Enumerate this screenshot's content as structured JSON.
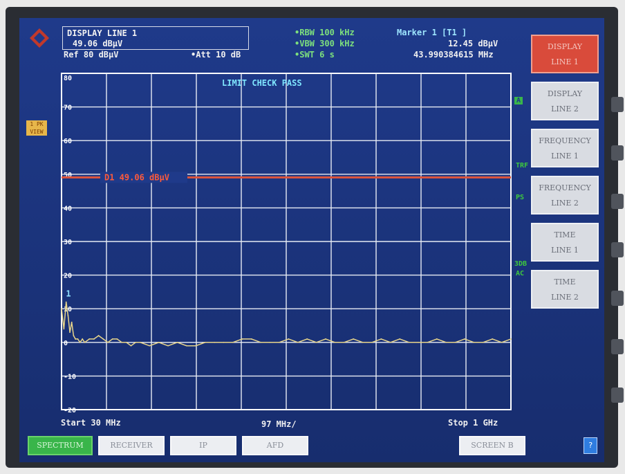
{
  "header": {
    "display_title": "DISPLAY LINE 1",
    "display_value": "49.06 dBµV",
    "ref": "Ref  80 dBµV",
    "att": "•Att  10 dB",
    "rbw": "•RBW 100 kHz",
    "vbw": "•VBW 300 kHz",
    "swt": "•SWT 6 s",
    "marker_title": "Marker 1 [T1 ]",
    "marker_level": "12.45 dBµV",
    "marker_freq": "43.990384615 MHz"
  },
  "plot": {
    "limit_check": "LIMIT CHECK   PASS",
    "display_line_label": "D1 49.06 dBµV",
    "marker_number": "1",
    "y_ticks": [
      "80",
      "70",
      "60",
      "50",
      "40",
      "30",
      "20",
      "10",
      "0",
      "-10",
      "-20"
    ],
    "start": "Start  30 MHz",
    "span_per_div": "97 MHz/",
    "stop": "Stop  1 GHz"
  },
  "side_marks": {
    "a": "A",
    "trf": "TRF",
    "ps": "PS",
    "db": "3DB",
    "ac": "AC",
    "left_tag": "1 PK VIEW"
  },
  "softkeys": [
    {
      "line1": "DISPLAY",
      "line2": "LINE 1",
      "active": true
    },
    {
      "line1": "DISPLAY",
      "line2": "LINE 2",
      "active": false
    },
    {
      "line1": "FREQUENCY",
      "line2": "LINE 1",
      "active": false
    },
    {
      "line1": "FREQUENCY",
      "line2": "LINE 2",
      "active": false
    },
    {
      "line1": "TIME",
      "line2": "LINE 1",
      "active": false
    },
    {
      "line1": "TIME",
      "line2": "LINE 2",
      "active": false
    }
  ],
  "bottom_keys": {
    "spectrum": "SPECTRUM",
    "receiver": "RECEIVER",
    "ip": "IP",
    "afd": "AFD",
    "screen_b": "SCREEN B",
    "help": "?"
  },
  "colors": {
    "background": "#1f3a8a",
    "grid": "#ffffff",
    "trace": "#e8d58a",
    "display_line": "#e0553b",
    "active_softkey": "#d94b3b",
    "active_bottom_key": "#39b54a"
  },
  "chart_data": {
    "type": "line",
    "title": "",
    "xlabel": "",
    "ylabel": "",
    "xlim": [
      30,
      1000
    ],
    "ylim": [
      -20,
      80
    ],
    "x_unit": "MHz",
    "y_unit": "dBµV",
    "grid": true,
    "display_line": 49.06,
    "marker": {
      "x": 43.990384615,
      "y": 12.45
    },
    "series": [
      {
        "x": [
          30,
          35,
          40,
          44,
          48,
          52,
          56,
          60,
          65,
          70,
          75,
          80,
          90,
          100,
          110,
          120,
          130,
          140,
          150,
          160,
          170,
          180,
          190,
          200,
          220,
          240,
          260,
          280,
          300,
          320,
          340,
          360,
          380,
          400,
          420,
          440,
          460,
          480,
          500,
          520,
          540,
          560,
          580,
          600,
          620,
          640,
          660,
          680,
          700,
          720,
          740,
          760,
          780,
          800,
          820,
          840,
          860,
          880,
          900,
          920,
          940,
          960,
          980,
          1000
        ],
        "y": [
          10,
          4,
          12,
          8,
          3,
          6,
          2,
          1,
          1,
          0,
          1,
          0,
          1,
          1,
          2,
          1,
          0,
          1,
          1,
          0,
          0,
          -1,
          0,
          0,
          -1,
          0,
          -1,
          0,
          -1,
          -1,
          0,
          0,
          0,
          0,
          1,
          1,
          0,
          0,
          0,
          1,
          0,
          1,
          0,
          1,
          0,
          0,
          1,
          0,
          0,
          1,
          0,
          1,
          0,
          0,
          0,
          1,
          0,
          0,
          1,
          0,
          0,
          1,
          0,
          1
        ]
      }
    ]
  }
}
